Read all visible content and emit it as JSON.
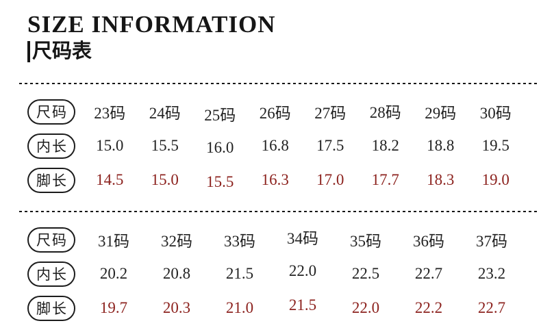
{
  "page": {
    "title": "SIZE INFORMATION",
    "subtitle_bar": "|",
    "subtitle": "尺码表",
    "text_color": "#1a1a1a",
    "highlight_color": "#8c221e"
  },
  "chart_data": {
    "type": "table",
    "title": "SIZE INFORMATION 尺码表",
    "tables": [
      {
        "rows": [
          {
            "key": "size",
            "label": "尺码",
            "highlight": false,
            "values": [
              "23码",
              "24码",
              "25码",
              "26码",
              "27码",
              "28码",
              "29码",
              "30码"
            ]
          },
          {
            "key": "inner-length",
            "label": "内长",
            "highlight": false,
            "values": [
              "15.0",
              "15.5",
              "16.0",
              "16.8",
              "17.5",
              "18.2",
              "18.8",
              "19.5"
            ]
          },
          {
            "key": "foot-length",
            "label": "脚长",
            "highlight": true,
            "values": [
              "14.5",
              "15.0",
              "15.5",
              "16.3",
              "17.0",
              "17.7",
              "18.3",
              "19.0"
            ]
          }
        ]
      },
      {
        "rows": [
          {
            "key": "size",
            "label": "尺码",
            "highlight": false,
            "values": [
              "31码",
              "32码",
              "33码",
              "34码",
              "35码",
              "36码",
              "37码"
            ]
          },
          {
            "key": "inner-length",
            "label": "内长",
            "highlight": false,
            "values": [
              "20.2",
              "20.8",
              "21.5",
              "22.0",
              "22.5",
              "22.7",
              "23.2"
            ]
          },
          {
            "key": "foot-length",
            "label": "脚长",
            "highlight": true,
            "values": [
              "19.7",
              "20.3",
              "21.0",
              "21.5",
              "22.0",
              "22.2",
              "22.7"
            ]
          }
        ]
      }
    ]
  }
}
